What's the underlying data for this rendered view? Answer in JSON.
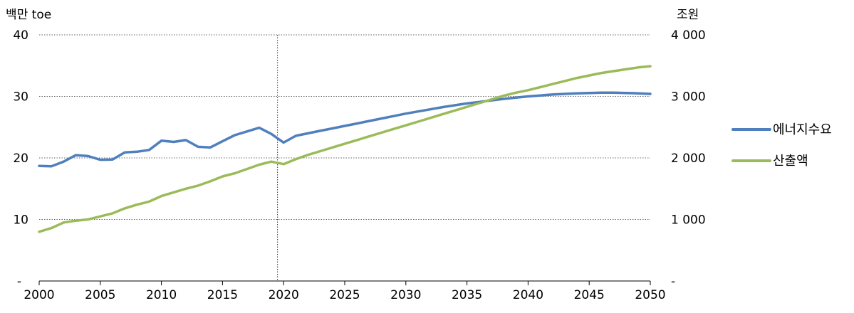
{
  "chart_data": {
    "type": "line",
    "y_left_unit": "백만 toe",
    "y_right_unit": "조원",
    "x_ticks": [
      "2000",
      "2005",
      "2010",
      "2015",
      "2020",
      "2025",
      "2030",
      "2035",
      "2040",
      "2045",
      "2050"
    ],
    "y_left_ticks": [
      "-",
      "10",
      "20",
      "30",
      "40"
    ],
    "y_right_ticks": [
      "-",
      "1 000",
      "2 000",
      "3 000",
      "4 000"
    ],
    "xlim": [
      2000,
      2050
    ],
    "ylim_left": [
      0,
      40
    ],
    "ylim_right": [
      0,
      4000
    ],
    "vertical_marker_x": 2019.5,
    "grid": "horizontal dotted",
    "legend_position": "right",
    "series": [
      {
        "name": "에너지수요",
        "axis": "left",
        "color": "#4f7fbd",
        "x": [
          2000,
          2001,
          2002,
          2003,
          2004,
          2005,
          2006,
          2007,
          2008,
          2009,
          2010,
          2011,
          2012,
          2013,
          2014,
          2015,
          2016,
          2017,
          2018,
          2019,
          2020,
          2021,
          2022,
          2023,
          2024,
          2025,
          2026,
          2027,
          2028,
          2029,
          2030,
          2031,
          2032,
          2033,
          2034,
          2035,
          2036,
          2037,
          2038,
          2039,
          2040,
          2041,
          2042,
          2043,
          2044,
          2045,
          2046,
          2047,
          2048,
          2049,
          2050
        ],
        "y": [
          18.7,
          18.65,
          19.4,
          20.45,
          20.3,
          19.7,
          19.75,
          20.9,
          21.0,
          21.3,
          22.8,
          22.6,
          22.9,
          21.8,
          21.7,
          22.7,
          23.7,
          24.3,
          24.9,
          23.9,
          22.5,
          23.6,
          24.0,
          24.4,
          24.8,
          25.2,
          25.6,
          26.0,
          26.4,
          26.8,
          27.2,
          27.55,
          27.9,
          28.25,
          28.55,
          28.85,
          29.1,
          29.35,
          29.6,
          29.8,
          30.0,
          30.15,
          30.3,
          30.4,
          30.5,
          30.55,
          30.6,
          30.6,
          30.55,
          30.5,
          30.4
        ]
      },
      {
        "name": "산출액",
        "axis": "right",
        "color": "#9bbb59",
        "x": [
          2000,
          2001,
          2002,
          2003,
          2004,
          2005,
          2006,
          2007,
          2008,
          2009,
          2010,
          2011,
          2012,
          2013,
          2014,
          2015,
          2016,
          2017,
          2018,
          2019,
          2020,
          2021,
          2022,
          2023,
          2024,
          2025,
          2026,
          2027,
          2028,
          2029,
          2030,
          2031,
          2032,
          2033,
          2034,
          2035,
          2036,
          2037,
          2038,
          2039,
          2040,
          2041,
          2042,
          2043,
          2044,
          2045,
          2046,
          2047,
          2048,
          2049,
          2050
        ],
        "y": [
          800,
          860,
          950,
          980,
          1000,
          1050,
          1100,
          1180,
          1240,
          1290,
          1380,
          1440,
          1500,
          1550,
          1620,
          1700,
          1750,
          1820,
          1890,
          1940,
          1900,
          1980,
          2050,
          2110,
          2170,
          2230,
          2290,
          2350,
          2410,
          2470,
          2530,
          2590,
          2650,
          2710,
          2770,
          2830,
          2890,
          2950,
          3010,
          3060,
          3100,
          3150,
          3200,
          3250,
          3300,
          3340,
          3380,
          3410,
          3440,
          3470,
          3490
        ]
      }
    ]
  }
}
